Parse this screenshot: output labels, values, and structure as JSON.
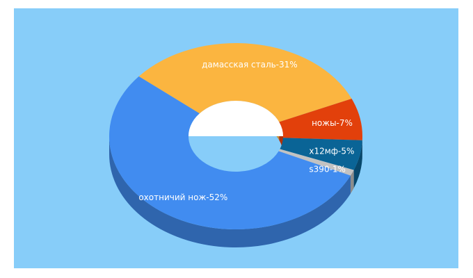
{
  "colors": {
    "background": "#87cdf9",
    "hole": "#ffffff"
  },
  "chart_data": {
    "type": "pie",
    "donut": true,
    "three_d": true,
    "slices": [
      {
        "label": "дамасская сталь-31%",
        "name": "дамасская сталь",
        "value": 31,
        "color": "#fbb540"
      },
      {
        "label": "ножы-7%",
        "name": "ножы",
        "value": 7,
        "color": "#e2400b"
      },
      {
        "label": "х12мф-5%",
        "name": "х12мф",
        "value": 5,
        "color": "#0a6496"
      },
      {
        "label": "s390-1%",
        "name": "s390",
        "value": 1,
        "color": "#c2c2c2"
      },
      {
        "label": "охотничий нож-52%",
        "name": "охотничий нож",
        "value": 52,
        "color": "#418cf0"
      }
    ]
  }
}
